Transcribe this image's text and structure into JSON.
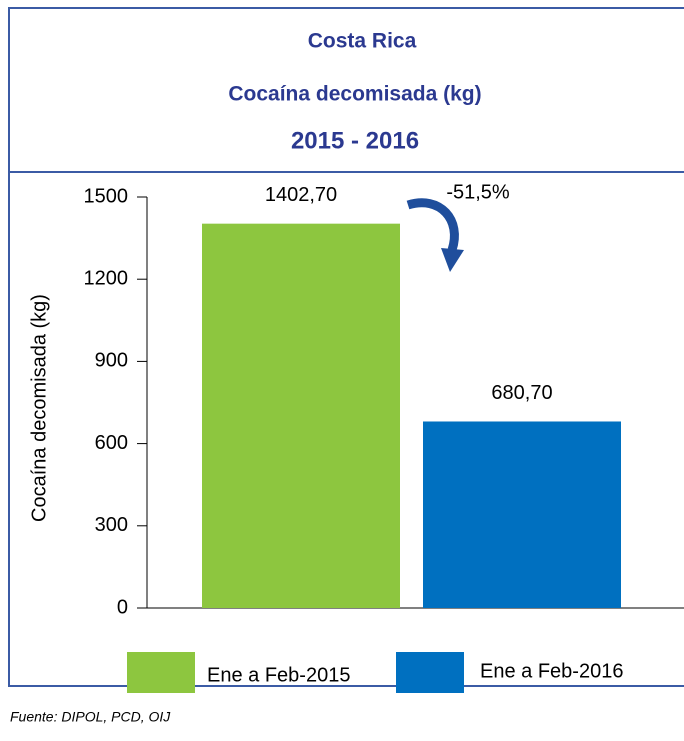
{
  "chart_data": {
    "type": "bar",
    "title": [
      "Costa Rica",
      "Cocaína decomisada (kg)",
      "2015 - 2016"
    ],
    "y_label": "Cocaína decomisada (kg)",
    "ylim": [
      0,
      1500
    ],
    "yticks": [
      0,
      300,
      600,
      900,
      1200,
      1500
    ],
    "series": [
      {
        "name": "Ene a Feb-2015",
        "color": "#8dc63f",
        "values": [
          1402.7
        ],
        "value_labels": [
          "1402,70"
        ]
      },
      {
        "name": "Ene a Feb-2016",
        "color": "#0070c0",
        "values": [
          680.7
        ],
        "value_labels": [
          "680,70"
        ]
      }
    ],
    "annotation": "-51,5%",
    "source": "Fuente: DIPOL, PCD, OIJ"
  }
}
